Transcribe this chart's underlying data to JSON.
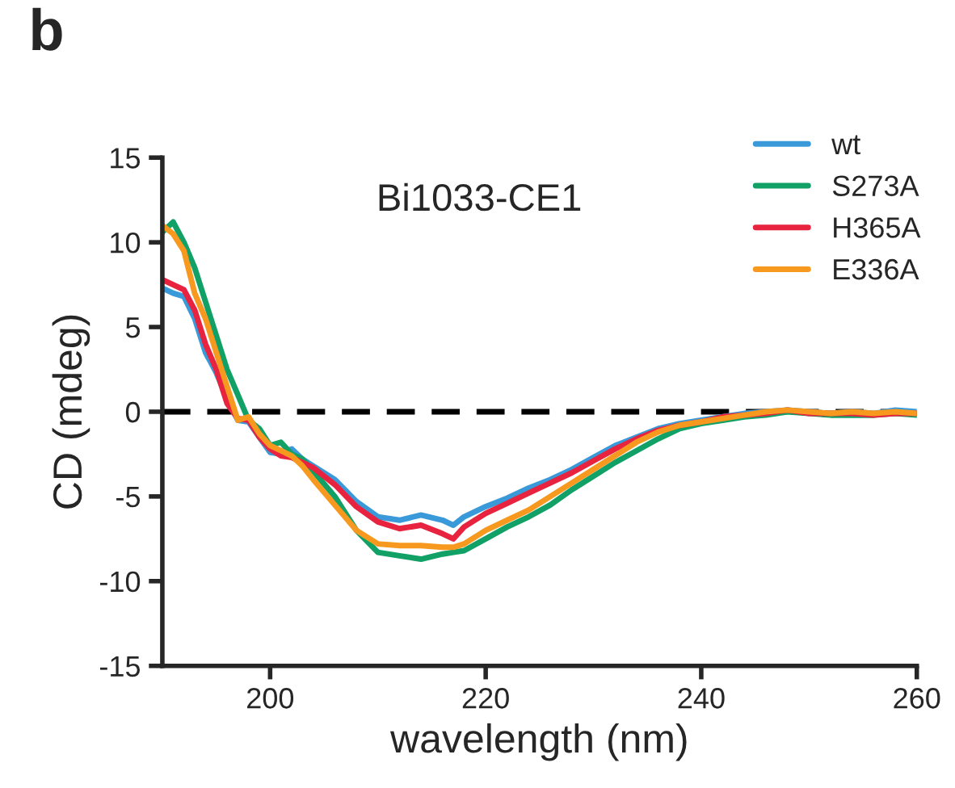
{
  "chart_data": {
    "type": "line",
    "title": "Bi1033-CE1",
    "annotations": [
      "b"
    ],
    "xlabel": "wavelength (nm)",
    "ylabel": "CD (mdeg)",
    "x": [
      190,
      191,
      192,
      193,
      194,
      195,
      196,
      197,
      198,
      199,
      200,
      201,
      202,
      203,
      204,
      206,
      208,
      210,
      212,
      214,
      216,
      217,
      218,
      220,
      222,
      224,
      226,
      228,
      230,
      232,
      234,
      236,
      238,
      240,
      242,
      244,
      246,
      248,
      250,
      252,
      254,
      256,
      258,
      260
    ],
    "series": [
      {
        "name": "wt",
        "color": "#3a9ad9",
        "values": [
          7.3,
          7.0,
          6.8,
          5.5,
          3.5,
          2.3,
          0.8,
          -0.5,
          -0.6,
          -1.5,
          -2.4,
          -2.5,
          -2.2,
          -2.8,
          -3.2,
          -4.0,
          -5.3,
          -6.2,
          -6.4,
          -6.1,
          -6.4,
          -6.7,
          -6.2,
          -5.6,
          -5.1,
          -4.5,
          -4.0,
          -3.4,
          -2.7,
          -2.0,
          -1.5,
          -1.0,
          -0.7,
          -0.5,
          -0.3,
          -0.1,
          0.0,
          0.1,
          0.0,
          -0.1,
          0.0,
          -0.1,
          0.1,
          0.0
        ]
      },
      {
        "name": "S273A",
        "color": "#11a065",
        "values": [
          10.6,
          11.2,
          10.0,
          8.5,
          6.5,
          4.5,
          2.5,
          1.0,
          -0.5,
          -1.0,
          -2.0,
          -1.8,
          -2.5,
          -2.8,
          -3.5,
          -5.0,
          -7.0,
          -8.3,
          -8.5,
          -8.7,
          -8.4,
          -8.3,
          -8.2,
          -7.5,
          -6.8,
          -6.2,
          -5.5,
          -4.6,
          -3.8,
          -3.0,
          -2.3,
          -1.6,
          -1.0,
          -0.7,
          -0.5,
          -0.3,
          -0.2,
          0.0,
          -0.1,
          -0.2,
          -0.2,
          -0.2,
          -0.1,
          -0.2
        ]
      },
      {
        "name": "H365A",
        "color": "#e8233f",
        "values": [
          7.8,
          7.5,
          7.2,
          6.0,
          4.0,
          2.5,
          0.5,
          -0.4,
          -0.5,
          -1.5,
          -2.2,
          -2.6,
          -2.7,
          -3.0,
          -3.3,
          -4.3,
          -5.6,
          -6.5,
          -6.9,
          -6.7,
          -7.2,
          -7.5,
          -6.8,
          -6.0,
          -5.4,
          -4.8,
          -4.2,
          -3.6,
          -2.9,
          -2.2,
          -1.6,
          -1.1,
          -0.8,
          -0.6,
          -0.3,
          -0.2,
          -0.1,
          0.1,
          -0.1,
          -0.1,
          -0.1,
          -0.2,
          -0.1,
          -0.1
        ]
      },
      {
        "name": "E336A",
        "color": "#f7991f",
        "values": [
          11.0,
          10.5,
          9.5,
          7.0,
          5.5,
          3.5,
          1.5,
          -0.5,
          -0.3,
          -1.3,
          -2.0,
          -2.3,
          -2.6,
          -3.2,
          -4.0,
          -5.5,
          -7.0,
          -7.8,
          -7.9,
          -7.9,
          -8.0,
          -8.0,
          -7.8,
          -7.0,
          -6.4,
          -5.8,
          -5.0,
          -4.2,
          -3.4,
          -2.6,
          -1.8,
          -1.2,
          -0.8,
          -0.6,
          -0.4,
          -0.2,
          0.0,
          0.1,
          0.0,
          -0.1,
          0.0,
          -0.1,
          0.0,
          -0.1
        ]
      }
    ],
    "xlim": [
      190,
      260
    ],
    "xticks": [
      200,
      220,
      240,
      260
    ],
    "ylim": [
      -15,
      15
    ],
    "yticks": [
      -15,
      -10,
      -5,
      0,
      5,
      10,
      15
    ],
    "ref_lines": [
      {
        "axis": "y",
        "value": 0,
        "color": "#000000",
        "line_style": "dashed"
      }
    ],
    "legend": "top right",
    "grid": false
  }
}
